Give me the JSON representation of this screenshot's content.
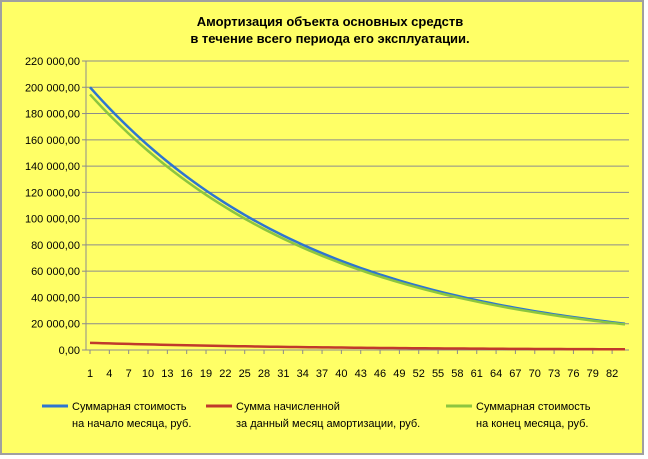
{
  "chart_data": {
    "type": "line",
    "title": "Амортизация объекта основных средств",
    "subtitle": "в течение всего периода его эксплуатации.",
    "xlabel": "",
    "ylabel": "",
    "ylim": [
      0,
      220000
    ],
    "yticks": [
      "0,00",
      "20 000,00",
      "40 000,00",
      "60 000,00",
      "80 000,00",
      "100 000,00",
      "120 000,00",
      "140 000,00",
      "160 000,00",
      "180 000,00",
      "200 000,00",
      "220 000,00"
    ],
    "xlim": [
      1,
      84
    ],
    "xticks": [
      "1",
      "4",
      "7",
      "10",
      "13",
      "16",
      "19",
      "22",
      "25",
      "28",
      "31",
      "34",
      "37",
      "40",
      "43",
      "46",
      "49",
      "52",
      "55",
      "58",
      "61",
      "64",
      "67",
      "70",
      "73",
      "76",
      "79",
      "82"
    ],
    "grid": true,
    "legend_position": "bottom",
    "series": [
      {
        "name": "Суммарная стоимость на начало месяца, руб.",
        "legend_lines": [
          "Суммарная стоимость",
          "на начало месяца, руб."
        ],
        "color": "#2e75d0",
        "decay": {
          "start_month": 1,
          "start_value": 200000,
          "monthly_factor": 0.97266
        }
      },
      {
        "name": "Сумма начисленной за данный месяц амортизации, руб.",
        "legend_lines": [
          "Сумма начисленной",
          "за данный месяц амортизации, руб."
        ],
        "color": "#c0392b",
        "decay": {
          "start_month": 1,
          "start_value": 5467,
          "monthly_factor": 0.97266
        }
      },
      {
        "name": "Суммарная стоимость на конец месяца, руб.",
        "legend_lines": [
          "Суммарная стоимость",
          "на конец месяца, руб."
        ],
        "color": "#8cc63f",
        "decay": {
          "start_month": 1,
          "start_value": 194533,
          "monthly_factor": 0.97266
        }
      }
    ]
  }
}
